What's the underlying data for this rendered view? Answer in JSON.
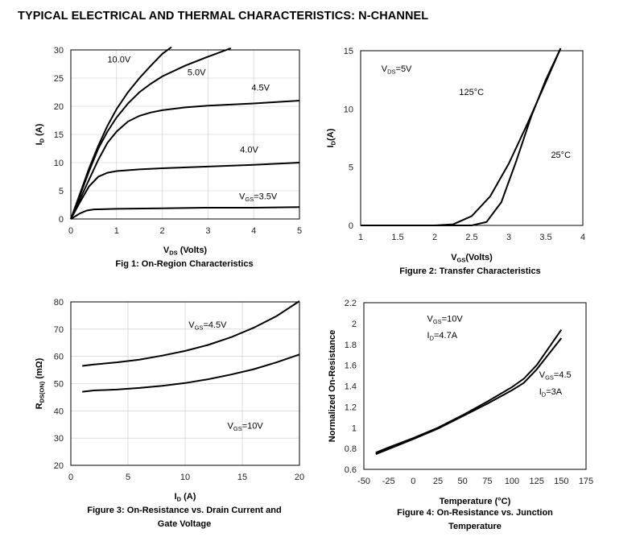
{
  "page_title": "TYPICAL ELECTRICAL AND THERMAL CHARACTERISTICS: N-CHANNEL",
  "chart_data": [
    {
      "id": "fig1",
      "type": "line",
      "caption": "Fig 1: On-Region Characteristics",
      "xlabel": {
        "main": "V",
        "sub": "DS",
        "rest": " (Volts)"
      },
      "ylabel": {
        "main": "I",
        "sub": "D",
        "rest": " (A)"
      },
      "xlim": [
        0,
        5
      ],
      "ylim": [
        0,
        30
      ],
      "xticks": [
        "0",
        "1",
        "2",
        "3",
        "4",
        "5"
      ],
      "yticks": [
        "0",
        "5",
        "10",
        "15",
        "20",
        "25",
        "30"
      ],
      "grid": true,
      "series": [
        {
          "name": "10.0V",
          "x": [
            0,
            0.2,
            0.4,
            0.6,
            0.8,
            1,
            1.25,
            1.5,
            1.75,
            2,
            2.2
          ],
          "y": [
            0,
            4.5,
            9,
            13,
            16.5,
            19.5,
            22.5,
            25,
            27.2,
            29.3,
            30.5
          ],
          "label": {
            "text": "10.0V",
            "at": [
              0.8,
              27.8
            ]
          }
        },
        {
          "name": "5.0V",
          "x": [
            0,
            0.2,
            0.4,
            0.6,
            0.8,
            1,
            1.25,
            1.5,
            1.75,
            2,
            2.5,
            3,
            3.5
          ],
          "y": [
            0,
            4.2,
            8.5,
            12.5,
            15.5,
            18,
            20.5,
            22.5,
            24,
            25.3,
            27.2,
            28.8,
            30.3
          ],
          "label": {
            "text": "5.0V",
            "at": [
              2.55,
              25.5
            ]
          }
        },
        {
          "name": "4.5V",
          "x": [
            0,
            0.2,
            0.4,
            0.6,
            0.8,
            1,
            1.25,
            1.5,
            1.75,
            2,
            2.5,
            3,
            4,
            5
          ],
          "y": [
            0,
            3.5,
            7,
            10.5,
            13.5,
            15.5,
            17.3,
            18.3,
            18.9,
            19.3,
            19.8,
            20.1,
            20.5,
            21
          ],
          "label": {
            "text": "4.5V",
            "at": [
              3.95,
              22.8
            ]
          }
        },
        {
          "name": "4.0V",
          "x": [
            0,
            0.2,
            0.4,
            0.6,
            0.8,
            1,
            1.5,
            2,
            3,
            4,
            5
          ],
          "y": [
            0,
            3,
            5.8,
            7.5,
            8.2,
            8.5,
            8.8,
            9,
            9.3,
            9.6,
            10
          ],
          "label": {
            "text": "4.0V",
            "at": [
              3.7,
              11.8
            ]
          }
        },
        {
          "name": "3.5V",
          "x": [
            0,
            0.2,
            0.35,
            0.5,
            1,
            2,
            3,
            4,
            5
          ],
          "y": [
            0,
            1,
            1.5,
            1.7,
            1.8,
            1.9,
            2,
            2,
            2.1
          ],
          "label": {
            "text": "VGS=3.5V",
            "parts": {
              "main": "V",
              "sub": "GS",
              "rest": "=3.5V"
            },
            "at": [
              3.68,
              3.5
            ]
          }
        }
      ]
    },
    {
      "id": "fig2",
      "type": "line",
      "caption": "Figure 2: Transfer Characteristics",
      "xlabel": {
        "main": "V",
        "sub": "GS",
        "rest": "(Volts)"
      },
      "ylabel": {
        "main": "I",
        "sub": "D",
        "rest": "(A)"
      },
      "xlim": [
        1,
        4
      ],
      "ylim": [
        0,
        15
      ],
      "xticks": [
        "1",
        "1.5",
        "2",
        "2.5",
        "3",
        "3.5",
        "4"
      ],
      "yticks": [
        "0",
        "5",
        "10",
        "15"
      ],
      "grid": false,
      "annotations": [
        {
          "text": "VDS=5V",
          "parts": {
            "main": "V",
            "sub": "DS",
            "rest": "=5V"
          },
          "at": [
            1.28,
            13.2
          ]
        },
        {
          "text": "125°C",
          "at": [
            2.33,
            11.2
          ]
        },
        {
          "text": "25°C",
          "at": [
            3.57,
            5.8
          ]
        }
      ],
      "series": [
        {
          "name": "125°C",
          "x": [
            1,
            2,
            2.25,
            2.5,
            2.75,
            3,
            3.25,
            3.5,
            3.7
          ],
          "y": [
            0,
            0,
            0.1,
            0.8,
            2.5,
            5.3,
            8.7,
            12.3,
            15.2
          ]
        },
        {
          "name": "25°C",
          "x": [
            1,
            2.5,
            2.7,
            2.9,
            3.1,
            3.3,
            3.5,
            3.7
          ],
          "y": [
            0,
            0,
            0.3,
            2.0,
            5.5,
            9.3,
            12.5,
            15.2
          ]
        }
      ]
    },
    {
      "id": "fig3",
      "type": "line",
      "caption": [
        "Figure 3: On-Resistance vs. Drain Current and",
        "Gate Voltage"
      ],
      "xlabel": {
        "main": "I",
        "sub": "D",
        "rest": " (A)"
      },
      "ylabel": {
        "main": "R",
        "sub": "DS(ON)",
        "rest": " (mΩ)"
      },
      "xlim": [
        0,
        20
      ],
      "ylim": [
        20,
        80
      ],
      "xticks": [
        "0",
        "5",
        "10",
        "15",
        "20"
      ],
      "yticks": [
        "20",
        "30",
        "40",
        "50",
        "60",
        "70",
        "80"
      ],
      "grid": true,
      "series": [
        {
          "name": "VGS=4.5V",
          "x": [
            1,
            2,
            4,
            6,
            8,
            10,
            12,
            14,
            16,
            18,
            20
          ],
          "y": [
            56.5,
            57,
            57.8,
            58.8,
            60.3,
            62,
            64.2,
            67,
            70.5,
            74.8,
            80.3
          ],
          "label": {
            "text": "VGS=4.5V",
            "parts": {
              "main": "V",
              "sub": "GS",
              "rest": "=4.5V"
            },
            "at": [
              10.3,
              70.5
            ]
          }
        },
        {
          "name": "VGS=10V",
          "x": [
            1,
            2,
            4,
            6,
            8,
            10,
            12,
            14,
            16,
            18,
            20
          ],
          "y": [
            47,
            47.5,
            47.8,
            48.4,
            49.2,
            50.2,
            51.6,
            53.3,
            55.3,
            57.8,
            60.7
          ],
          "label": {
            "text": "VGS=10V",
            "parts": {
              "main": "V",
              "sub": "GS",
              "rest": "=10V"
            },
            "at": [
              13.7,
              33.5
            ]
          }
        }
      ]
    },
    {
      "id": "fig4",
      "type": "line",
      "caption": [
        "Figure 4: On-Resistance vs. Junction",
        "Temperature"
      ],
      "xlabel": {
        "main": "Temperature (°C)",
        "sub": "",
        "rest": ""
      },
      "ylabel": {
        "main": "Normalized On-Resistance",
        "sub": "",
        "rest": ""
      },
      "xlim": [
        -50,
        175
      ],
      "ylim": [
        0.6,
        2.2
      ],
      "xticks": [
        "-50",
        "-25",
        "0",
        "25",
        "50",
        "75",
        "100",
        "125",
        "150",
        "175"
      ],
      "yticks": [
        "0.6",
        "0.8",
        "1",
        "1.2",
        "1.4",
        "1.6",
        "1.8",
        "2",
        "2.2"
      ],
      "grid": false,
      "annotations": [
        {
          "text": "VGS=10V",
          "parts": {
            "main": "V",
            "sub": "GS",
            "rest": "=10V"
          },
          "at": [
            14,
            2.02
          ]
        },
        {
          "text": "ID=4.7A",
          "parts": {
            "main": "I",
            "sub": "D",
            "rest": "=4.7A"
          },
          "at": [
            14,
            1.86
          ]
        },
        {
          "text": "VGS=4.5",
          "parts": {
            "main": "V",
            "sub": "GS",
            "rest": "=4.5"
          },
          "at": [
            127.5,
            1.48
          ]
        },
        {
          "text": "ID=3A",
          "parts": {
            "main": "I",
            "sub": "D",
            "rest": "=3A"
          },
          "at": [
            127.5,
            1.32
          ]
        }
      ],
      "series": [
        {
          "name": "VGS=10V ID=4.7A",
          "x": [
            -38,
            -25,
            0,
            25,
            50,
            75,
            100,
            112,
            125,
            150
          ],
          "y": [
            0.76,
            0.81,
            0.9,
            1.0,
            1.12,
            1.25,
            1.39,
            1.47,
            1.6,
            1.94
          ]
        },
        {
          "name": "VGS=4.5 ID=3A",
          "x": [
            -38,
            -25,
            0,
            25,
            50,
            75,
            100,
            112,
            125,
            150
          ],
          "y": [
            0.745,
            0.795,
            0.89,
            0.99,
            1.11,
            1.23,
            1.36,
            1.43,
            1.56,
            1.86
          ]
        }
      ]
    }
  ]
}
